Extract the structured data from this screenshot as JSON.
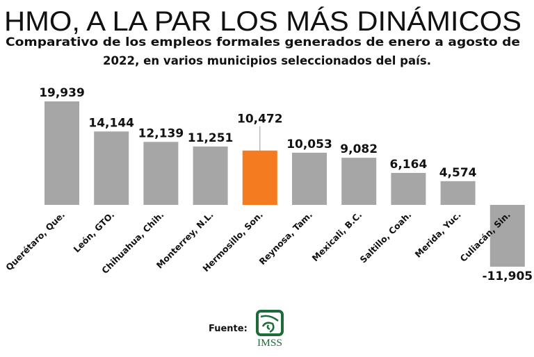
{
  "chart_data": {
    "type": "bar",
    "title": "HMO, A LA PAR LOS MÁS DINÁMICOS",
    "subtitle_lines": [
      "Comparativo de los empleos formales generados de enero a agosto de",
      "2022, en varios municipios seleccionados del país."
    ],
    "categories": [
      "Querétaro, Que.",
      "León, GTO.",
      "Chihuahua, Chih.",
      "Monterrey, N.L.",
      "Hermosillo, Son.",
      "Reynosa, Tam.",
      "Mexicali, B.C.",
      "Saltillo, Coah.",
      "Merida, Yuc.",
      "Culiacán, Sin."
    ],
    "values": [
      19939,
      14144,
      12139,
      11251,
      10472,
      10053,
      9082,
      6164,
      4574,
      -11905
    ],
    "data_labels": [
      "19,939",
      "14,144",
      "12,139",
      "11,251",
      "10,472",
      "10,053",
      "9,082",
      "6,164",
      "4,574",
      "-11,905"
    ],
    "highlight_index": 4,
    "xlabel": "",
    "ylabel": "",
    "ylim": [
      -11905,
      19939
    ],
    "grid": false,
    "legend": "none",
    "colors": {
      "bar": "#a6a6a6",
      "highlight": "#f47b20",
      "text": "#111111"
    }
  },
  "footer": {
    "source_label": "Fuente:",
    "logo_text": "IMSS",
    "logo_color": "#1e6b3a"
  }
}
